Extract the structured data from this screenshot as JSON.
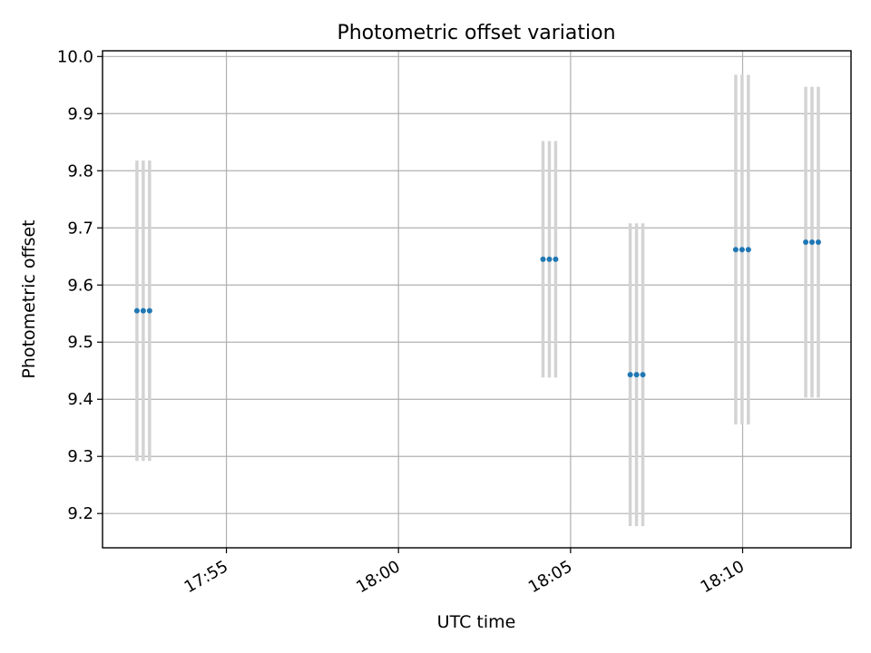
{
  "chart_data": {
    "type": "scatter",
    "title": "Photometric offset variation",
    "xlabel": "UTC time",
    "ylabel": "Photometric offset",
    "grid": true,
    "ylim": [
      9.14,
      10.01
    ],
    "xlim": [
      "17:51:24",
      "18:13:09"
    ],
    "x_ticks": [
      "17:55",
      "18:00",
      "18:05",
      "18:10"
    ],
    "y_ticks": [
      "9.2",
      "9.3",
      "9.4",
      "9.5",
      "9.6",
      "9.7",
      "9.8",
      "9.9",
      "10.0"
    ],
    "point_color": "#1f77b4",
    "errorbar_color": "#d3d3d3",
    "points": [
      {
        "x": "17:52:24",
        "y": 9.555,
        "yerr": 0.263
      },
      {
        "x": "17:52:35",
        "y": 9.555,
        "yerr": 0.263
      },
      {
        "x": "17:52:46",
        "y": 9.555,
        "yerr": 0.263
      },
      {
        "x": "18:04:12",
        "y": 9.645,
        "yerr": 0.207
      },
      {
        "x": "18:04:23",
        "y": 9.645,
        "yerr": 0.207
      },
      {
        "x": "18:04:34",
        "y": 9.645,
        "yerr": 0.207
      },
      {
        "x": "18:06:44",
        "y": 9.443,
        "yerr": 0.265
      },
      {
        "x": "18:06:55",
        "y": 9.443,
        "yerr": 0.265
      },
      {
        "x": "18:07:06",
        "y": 9.443,
        "yerr": 0.265
      },
      {
        "x": "18:09:48",
        "y": 9.662,
        "yerr": 0.306
      },
      {
        "x": "18:09:59",
        "y": 9.662,
        "yerr": 0.306
      },
      {
        "x": "18:10:10",
        "y": 9.662,
        "yerr": 0.306
      },
      {
        "x": "18:11:50",
        "y": 9.675,
        "yerr": 0.272
      },
      {
        "x": "18:12:01",
        "y": 9.675,
        "yerr": 0.272
      },
      {
        "x": "18:12:12",
        "y": 9.675,
        "yerr": 0.272
      }
    ]
  }
}
